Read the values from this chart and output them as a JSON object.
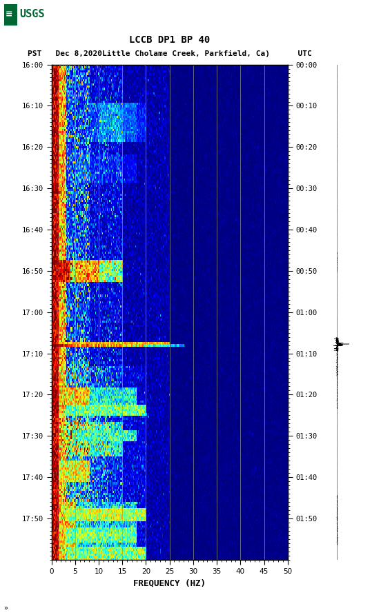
{
  "title_line1": "LCCB DP1 BP 40",
  "title_line2": "PST   Dec 8,2020Little Cholame Creek, Parkfield, Ca)      UTC",
  "xlabel": "FREQUENCY (HZ)",
  "freq_min": 0,
  "freq_max": 50,
  "yticks_pst": [
    "16:00",
    "16:10",
    "16:20",
    "16:30",
    "16:40",
    "16:50",
    "17:00",
    "17:10",
    "17:20",
    "17:30",
    "17:40",
    "17:50"
  ],
  "yticks_utc": [
    "00:00",
    "00:10",
    "00:20",
    "00:30",
    "00:40",
    "00:50",
    "01:00",
    "01:10",
    "01:20",
    "01:30",
    "01:40",
    "01:50"
  ],
  "xticks": [
    0,
    5,
    10,
    15,
    20,
    25,
    30,
    35,
    40,
    45,
    50
  ],
  "vgrid_freqs": [
    5,
    10,
    15,
    20,
    25,
    30,
    35,
    40,
    45
  ],
  "fig_bg": "#ffffff",
  "colormap": "jet",
  "n_time": 230,
  "n_freq": 300,
  "logo_text": "USGS",
  "logo_color": "#006633"
}
